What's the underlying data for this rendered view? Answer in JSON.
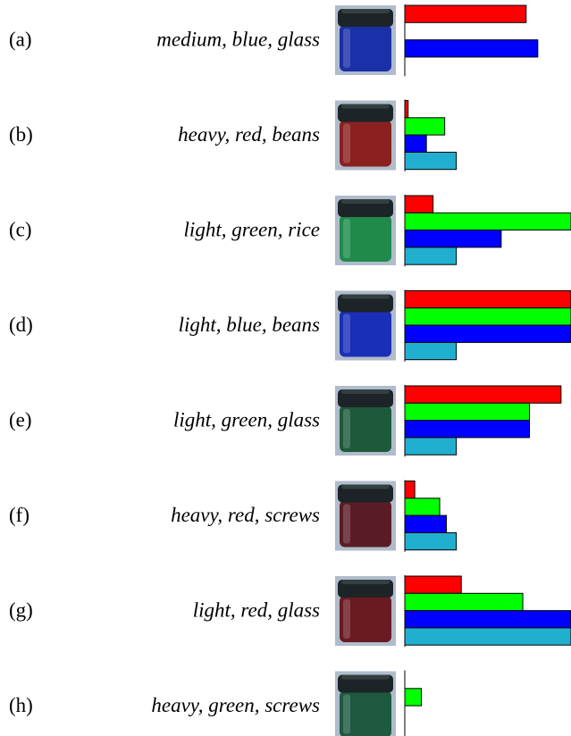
{
  "bar_colors": [
    "#ff0000",
    "#00ff00",
    "#0000ff",
    "#21afd0"
  ],
  "bar_range": [
    0,
    1
  ],
  "rows": [
    {
      "label": "(a)",
      "description": "medium, blue, glass",
      "jar_color": "#1a2fa8",
      "values": [
        0.73,
        null,
        0.8,
        null
      ]
    },
    {
      "label": "(b)",
      "description": "heavy, red, beans",
      "jar_color": "#8a2020",
      "values": [
        0.02,
        0.24,
        0.13,
        0.31
      ]
    },
    {
      "label": "(c)",
      "description": "light, green, rice",
      "jar_color": "#1f8a4a",
      "values": [
        0.17,
        1.0,
        0.58,
        0.31
      ]
    },
    {
      "label": "(d)",
      "description": "light, blue, beans",
      "jar_color": "#1a2fb8",
      "values": [
        1.0,
        1.0,
        1.0,
        0.31
      ]
    },
    {
      "label": "(e)",
      "description": "light, green, glass",
      "jar_color": "#1d5a3a",
      "values": [
        0.94,
        0.75,
        0.75,
        0.31
      ]
    },
    {
      "label": "(f)",
      "description": "heavy, red, screws",
      "jar_color": "#5a1c24",
      "values": [
        0.06,
        0.21,
        0.25,
        0.31
      ]
    },
    {
      "label": "(g)",
      "description": "light, red, glass",
      "jar_color": "#6a1a22",
      "values": [
        0.34,
        0.71,
        1.0,
        1.0
      ]
    },
    {
      "label": "(h)",
      "description": "heavy, green, screws",
      "jar_color": "#1d5a40",
      "values": [
        null,
        0.1,
        null,
        null
      ]
    }
  ]
}
